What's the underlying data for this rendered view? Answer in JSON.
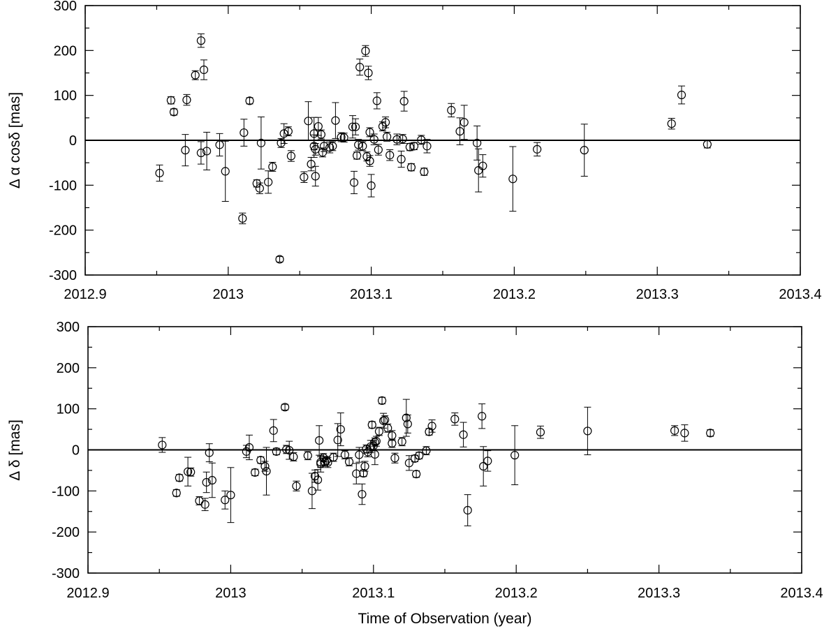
{
  "chart_data": [
    {
      "type": "scatter",
      "xlabel": "",
      "ylabel": "Δ α cosδ [mas]",
      "xlim": [
        2012.9,
        2013.4
      ],
      "ylim": [
        -300,
        300
      ],
      "x_ticks": [
        "2012.9",
        "2013",
        "2013.1",
        "2013.2",
        "2013.3",
        "2013.4"
      ],
      "y_ticks": [
        "300",
        "200",
        "100",
        "0",
        "-100",
        "-200",
        "-300"
      ],
      "zero_line": true,
      "grid": false,
      "legend": "none",
      "points": [
        {
          "x": 2012.952,
          "y": -73,
          "err": 18
        },
        {
          "x": 2012.96,
          "y": 89,
          "err": 8
        },
        {
          "x": 2012.962,
          "y": 63,
          "err": 7
        },
        {
          "x": 2012.97,
          "y": -22,
          "err": 35
        },
        {
          "x": 2012.971,
          "y": 90,
          "err": 12
        },
        {
          "x": 2012.977,
          "y": 145,
          "err": 10
        },
        {
          "x": 2012.981,
          "y": 222,
          "err": 15
        },
        {
          "x": 2012.981,
          "y": -28,
          "err": 25
        },
        {
          "x": 2012.983,
          "y": 157,
          "err": 22
        },
        {
          "x": 2012.985,
          "y": -24,
          "err": 42
        },
        {
          "x": 2012.994,
          "y": -10,
          "err": 25
        },
        {
          "x": 2012.998,
          "y": -69,
          "err": 67
        },
        {
          "x": 2013.01,
          "y": -174,
          "err": 12
        },
        {
          "x": 2013.011,
          "y": 17,
          "err": 30
        },
        {
          "x": 2013.015,
          "y": 88,
          "err": 7
        },
        {
          "x": 2013.02,
          "y": -96,
          "err": 8
        },
        {
          "x": 2013.022,
          "y": -107,
          "err": 12
        },
        {
          "x": 2013.023,
          "y": -6,
          "err": 58
        },
        {
          "x": 2013.028,
          "y": -93,
          "err": 25
        },
        {
          "x": 2013.031,
          "y": -59,
          "err": 10
        },
        {
          "x": 2013.036,
          "y": -265,
          "err": 6
        },
        {
          "x": 2013.037,
          "y": -6,
          "err": 10
        },
        {
          "x": 2013.039,
          "y": 15,
          "err": 22
        },
        {
          "x": 2013.042,
          "y": 20,
          "err": 10
        },
        {
          "x": 2013.044,
          "y": -35,
          "err": 12
        },
        {
          "x": 2013.053,
          "y": -82,
          "err": 12
        },
        {
          "x": 2013.056,
          "y": 43,
          "err": 43
        },
        {
          "x": 2013.058,
          "y": -53,
          "err": 15
        },
        {
          "x": 2013.06,
          "y": -13,
          "err": 25
        },
        {
          "x": 2013.06,
          "y": 15,
          "err": 36
        },
        {
          "x": 2013.061,
          "y": -20,
          "err": 13
        },
        {
          "x": 2013.061,
          "y": -80,
          "err": 22
        },
        {
          "x": 2013.063,
          "y": 31,
          "err": 20
        },
        {
          "x": 2013.065,
          "y": 13,
          "err": 10
        },
        {
          "x": 2013.066,
          "y": -27,
          "err": 10
        },
        {
          "x": 2013.067,
          "y": -13,
          "err": 12
        },
        {
          "x": 2013.071,
          "y": -16,
          "err": 12
        },
        {
          "x": 2013.073,
          "y": -13,
          "err": 10
        },
        {
          "x": 2013.075,
          "y": 44,
          "err": 40
        },
        {
          "x": 2013.079,
          "y": 7,
          "err": 10
        },
        {
          "x": 2013.081,
          "y": 6,
          "err": 10
        },
        {
          "x": 2013.087,
          "y": 30,
          "err": 25
        },
        {
          "x": 2013.088,
          "y": -94,
          "err": 25
        },
        {
          "x": 2013.089,
          "y": 30,
          "err": 18
        },
        {
          "x": 2013.09,
          "y": -34,
          "err": 8
        },
        {
          "x": 2013.091,
          "y": -10,
          "err": 12
        },
        {
          "x": 2013.092,
          "y": 163,
          "err": 18
        },
        {
          "x": 2013.094,
          "y": -13,
          "err": 10
        },
        {
          "x": 2013.096,
          "y": 199,
          "err": 12
        },
        {
          "x": 2013.097,
          "y": -36,
          "err": 10
        },
        {
          "x": 2013.098,
          "y": 150,
          "err": 15
        },
        {
          "x": 2013.099,
          "y": -46,
          "err": 12
        },
        {
          "x": 2013.099,
          "y": 18,
          "err": 10
        },
        {
          "x": 2013.1,
          "y": -101,
          "err": 25
        },
        {
          "x": 2013.102,
          "y": 2,
          "err": 12
        },
        {
          "x": 2013.104,
          "y": 88,
          "err": 18
        },
        {
          "x": 2013.105,
          "y": -21,
          "err": 12
        },
        {
          "x": 2013.108,
          "y": 31,
          "err": 10
        },
        {
          "x": 2013.11,
          "y": 40,
          "err": 12
        },
        {
          "x": 2013.111,
          "y": 8,
          "err": 10
        },
        {
          "x": 2013.113,
          "y": -33,
          "err": 12
        },
        {
          "x": 2013.118,
          "y": 2,
          "err": 12
        },
        {
          "x": 2013.121,
          "y": -42,
          "err": 18
        },
        {
          "x": 2013.122,
          "y": 3,
          "err": 10
        },
        {
          "x": 2013.123,
          "y": 87,
          "err": 22
        },
        {
          "x": 2013.127,
          "y": -15,
          "err": 8
        },
        {
          "x": 2013.128,
          "y": -60,
          "err": 8
        },
        {
          "x": 2013.13,
          "y": -13,
          "err": 8
        },
        {
          "x": 2013.135,
          "y": 1,
          "err": 10
        },
        {
          "x": 2013.137,
          "y": -70,
          "err": 8
        },
        {
          "x": 2013.139,
          "y": -13,
          "err": 15
        },
        {
          "x": 2013.156,
          "y": 67,
          "err": 15
        },
        {
          "x": 2013.162,
          "y": 20,
          "err": 30
        },
        {
          "x": 2013.165,
          "y": 40,
          "err": 38
        },
        {
          "x": 2013.174,
          "y": -6,
          "err": 38
        },
        {
          "x": 2013.175,
          "y": -67,
          "err": 48
        },
        {
          "x": 2013.178,
          "y": -57,
          "err": 25
        },
        {
          "x": 2013.199,
          "y": -86,
          "err": 72
        },
        {
          "x": 2013.216,
          "y": -20,
          "err": 15
        },
        {
          "x": 2013.249,
          "y": -22,
          "err": 58
        },
        {
          "x": 2013.31,
          "y": 37,
          "err": 12
        },
        {
          "x": 2013.317,
          "y": 101,
          "err": 20
        },
        {
          "x": 2013.335,
          "y": -9,
          "err": 8
        }
      ]
    },
    {
      "type": "scatter",
      "xlabel": "Time of Observation (year)",
      "ylabel": "Δ δ [mas]",
      "xlim": [
        2012.9,
        2013.4
      ],
      "ylim": [
        -300,
        300
      ],
      "x_ticks": [
        "2012.9",
        "2013",
        "2013.1",
        "2013.2",
        "2013.3",
        "2013.4"
      ],
      "y_ticks": [
        "300",
        "200",
        "100",
        "0",
        "-100",
        "-200",
        "-300"
      ],
      "zero_line": true,
      "grid": false,
      "legend": "none",
      "points": [
        {
          "x": 2012.952,
          "y": 12,
          "err": 18
        },
        {
          "x": 2012.962,
          "y": -105,
          "err": 8
        },
        {
          "x": 2012.964,
          "y": -68,
          "err": 8
        },
        {
          "x": 2012.97,
          "y": -53,
          "err": 35
        },
        {
          "x": 2012.972,
          "y": -54,
          "err": 10
        },
        {
          "x": 2012.978,
          "y": -124,
          "err": 10
        },
        {
          "x": 2012.982,
          "y": -133,
          "err": 15
        },
        {
          "x": 2012.983,
          "y": -79,
          "err": 25
        },
        {
          "x": 2012.985,
          "y": -7,
          "err": 22
        },
        {
          "x": 2012.987,
          "y": -74,
          "err": 42
        },
        {
          "x": 2012.996,
          "y": -122,
          "err": 22
        },
        {
          "x": 2013.0,
          "y": -110,
          "err": 67
        },
        {
          "x": 2013.011,
          "y": -4,
          "err": 15
        },
        {
          "x": 2013.013,
          "y": 6,
          "err": 30
        },
        {
          "x": 2013.017,
          "y": -55,
          "err": 8
        },
        {
          "x": 2013.021,
          "y": -25,
          "err": 8
        },
        {
          "x": 2013.024,
          "y": -40,
          "err": 12
        },
        {
          "x": 2013.025,
          "y": -52,
          "err": 58
        },
        {
          "x": 2013.03,
          "y": 47,
          "err": 27
        },
        {
          "x": 2013.032,
          "y": -4,
          "err": 8
        },
        {
          "x": 2013.038,
          "y": 104,
          "err": 7
        },
        {
          "x": 2013.039,
          "y": 1,
          "err": 10
        },
        {
          "x": 2013.041,
          "y": -1,
          "err": 22
        },
        {
          "x": 2013.044,
          "y": -17,
          "err": 10
        },
        {
          "x": 2013.046,
          "y": -88,
          "err": 12
        },
        {
          "x": 2013.054,
          "y": -14,
          "err": 10
        },
        {
          "x": 2013.057,
          "y": -100,
          "err": 43
        },
        {
          "x": 2013.059,
          "y": -64,
          "err": 15
        },
        {
          "x": 2013.061,
          "y": -73,
          "err": 25
        },
        {
          "x": 2013.062,
          "y": 23,
          "err": 36
        },
        {
          "x": 2013.063,
          "y": -30,
          "err": 13
        },
        {
          "x": 2013.063,
          "y": -34,
          "err": 20
        },
        {
          "x": 2013.065,
          "y": -19,
          "err": 10
        },
        {
          "x": 2013.066,
          "y": -30,
          "err": 10
        },
        {
          "x": 2013.067,
          "y": -26,
          "err": 10
        },
        {
          "x": 2013.068,
          "y": -31,
          "err": 12
        },
        {
          "x": 2013.072,
          "y": -18,
          "err": 10
        },
        {
          "x": 2013.075,
          "y": 24,
          "err": 40
        },
        {
          "x": 2013.077,
          "y": 50,
          "err": 40
        },
        {
          "x": 2013.08,
          "y": -12,
          "err": 10
        },
        {
          "x": 2013.083,
          "y": -29,
          "err": 10
        },
        {
          "x": 2013.088,
          "y": -58,
          "err": 25
        },
        {
          "x": 2013.09,
          "y": -12,
          "err": 18
        },
        {
          "x": 2013.092,
          "y": -108,
          "err": 25
        },
        {
          "x": 2013.093,
          "y": -57,
          "err": 8
        },
        {
          "x": 2013.094,
          "y": -40,
          "err": 12
        },
        {
          "x": 2013.095,
          "y": 2,
          "err": 10
        },
        {
          "x": 2013.096,
          "y": -5,
          "err": 12
        },
        {
          "x": 2013.098,
          "y": 8,
          "err": 15
        },
        {
          "x": 2013.099,
          "y": 61,
          "err": 8
        },
        {
          "x": 2013.1,
          "y": 10,
          "err": 12
        },
        {
          "x": 2013.101,
          "y": 19,
          "err": 10
        },
        {
          "x": 2013.101,
          "y": -11,
          "err": 25
        },
        {
          "x": 2013.102,
          "y": 21,
          "err": 12
        },
        {
          "x": 2013.104,
          "y": 45,
          "err": 10
        },
        {
          "x": 2013.106,
          "y": 120,
          "err": 8
        },
        {
          "x": 2013.107,
          "y": 71,
          "err": 18
        },
        {
          "x": 2013.108,
          "y": 73,
          "err": 10
        },
        {
          "x": 2013.11,
          "y": 53,
          "err": 10
        },
        {
          "x": 2013.113,
          "y": 35,
          "err": 12
        },
        {
          "x": 2013.113,
          "y": 16,
          "err": 10
        },
        {
          "x": 2013.115,
          "y": -20,
          "err": 12
        },
        {
          "x": 2013.12,
          "y": 20,
          "err": 10
        },
        {
          "x": 2013.123,
          "y": 78,
          "err": 45
        },
        {
          "x": 2013.124,
          "y": 63,
          "err": 22
        },
        {
          "x": 2013.125,
          "y": -32,
          "err": 18
        },
        {
          "x": 2013.129,
          "y": -21,
          "err": 8
        },
        {
          "x": 2013.13,
          "y": -59,
          "err": 8
        },
        {
          "x": 2013.132,
          "y": -14,
          "err": 8
        },
        {
          "x": 2013.137,
          "y": -2,
          "err": 10
        },
        {
          "x": 2013.139,
          "y": 44,
          "err": 8
        },
        {
          "x": 2013.141,
          "y": 58,
          "err": 15
        },
        {
          "x": 2013.157,
          "y": 75,
          "err": 15
        },
        {
          "x": 2013.163,
          "y": 37,
          "err": 30
        },
        {
          "x": 2013.166,
          "y": -147,
          "err": 38
        },
        {
          "x": 2013.176,
          "y": 82,
          "err": 30
        },
        {
          "x": 2013.177,
          "y": -40,
          "err": 48
        },
        {
          "x": 2013.18,
          "y": -27,
          "err": 25
        },
        {
          "x": 2013.199,
          "y": -13,
          "err": 72
        },
        {
          "x": 2013.217,
          "y": 43,
          "err": 15
        },
        {
          "x": 2013.25,
          "y": 46,
          "err": 58
        },
        {
          "x": 2013.311,
          "y": 47,
          "err": 12
        },
        {
          "x": 2013.318,
          "y": 41,
          "err": 20
        },
        {
          "x": 2013.336,
          "y": 41,
          "err": 8
        }
      ]
    }
  ]
}
